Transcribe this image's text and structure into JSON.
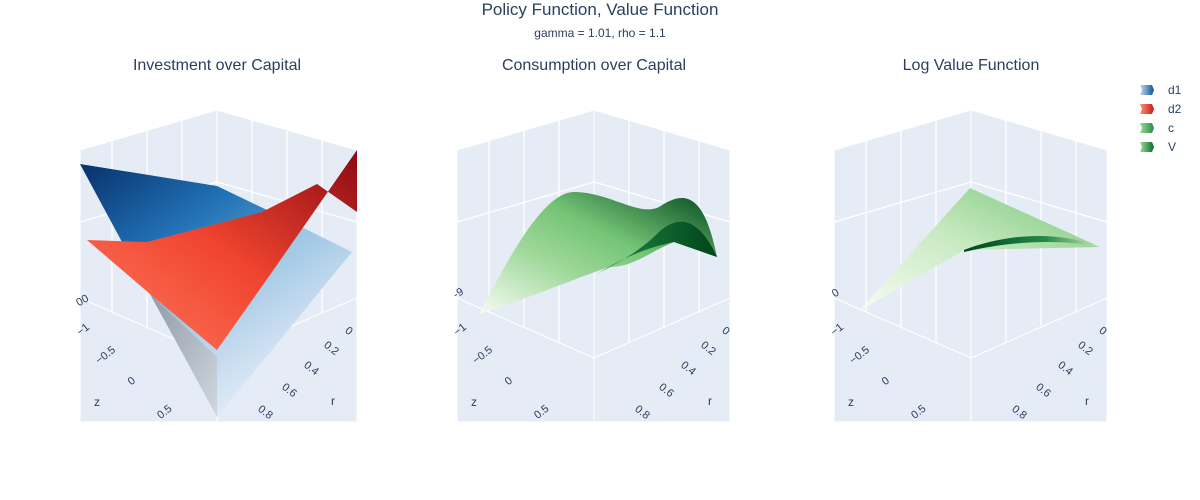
{
  "title": "Policy Function, Value Function",
  "subtitle": "gamma = 1.01, rho = 1.1",
  "colors": {
    "pane": "#e5ecf6",
    "grid": "#ffffff",
    "text": "#2a3f5f"
  },
  "legend": {
    "items": [
      {
        "name": "d1",
        "colorscale": "Blues"
      },
      {
        "name": "d2",
        "colorscale": "Reds"
      },
      {
        "name": "c",
        "colorscale": "Greens"
      },
      {
        "name": "V",
        "colorscale": "Greens"
      }
    ]
  },
  "chart_data": [
    {
      "type": "surface",
      "title": "Investment over Capital",
      "axes": {
        "z_label": "z",
        "r_label": "r",
        "z_ticks": [
          "−1",
          "−0.5",
          "0",
          "0.5"
        ],
        "r_ticks": [
          "0",
          "0.2",
          "0.4",
          "0.6",
          "0.8"
        ],
        "vertical_ticks": [
          "00"
        ]
      },
      "series": [
        {
          "name": "d1",
          "colorscale": "Blues"
        },
        {
          "name": "d2",
          "colorscale": "Reds"
        }
      ]
    },
    {
      "type": "surface",
      "title": "Consumption over Capital",
      "axes": {
        "z_label": "z",
        "r_label": "r",
        "z_ticks": [
          "−1",
          "−0.5",
          "0",
          "0.5"
        ],
        "r_ticks": [
          "0",
          "0.2",
          "0.4",
          "0.6",
          "0.8"
        ],
        "vertical_ticks": [
          "-9"
        ]
      },
      "series": [
        {
          "name": "c",
          "colorscale": "Greens"
        }
      ]
    },
    {
      "type": "surface",
      "title": "Log Value Function",
      "axes": {
        "z_label": "z",
        "r_label": "r",
        "z_ticks": [
          "−1",
          "−0.5",
          "0",
          "0.5"
        ],
        "r_ticks": [
          "0",
          "0.2",
          "0.4",
          "0.6",
          "0.8"
        ],
        "vertical_ticks": [
          "0"
        ]
      },
      "series": [
        {
          "name": "V",
          "colorscale": "Greens"
        }
      ]
    }
  ]
}
